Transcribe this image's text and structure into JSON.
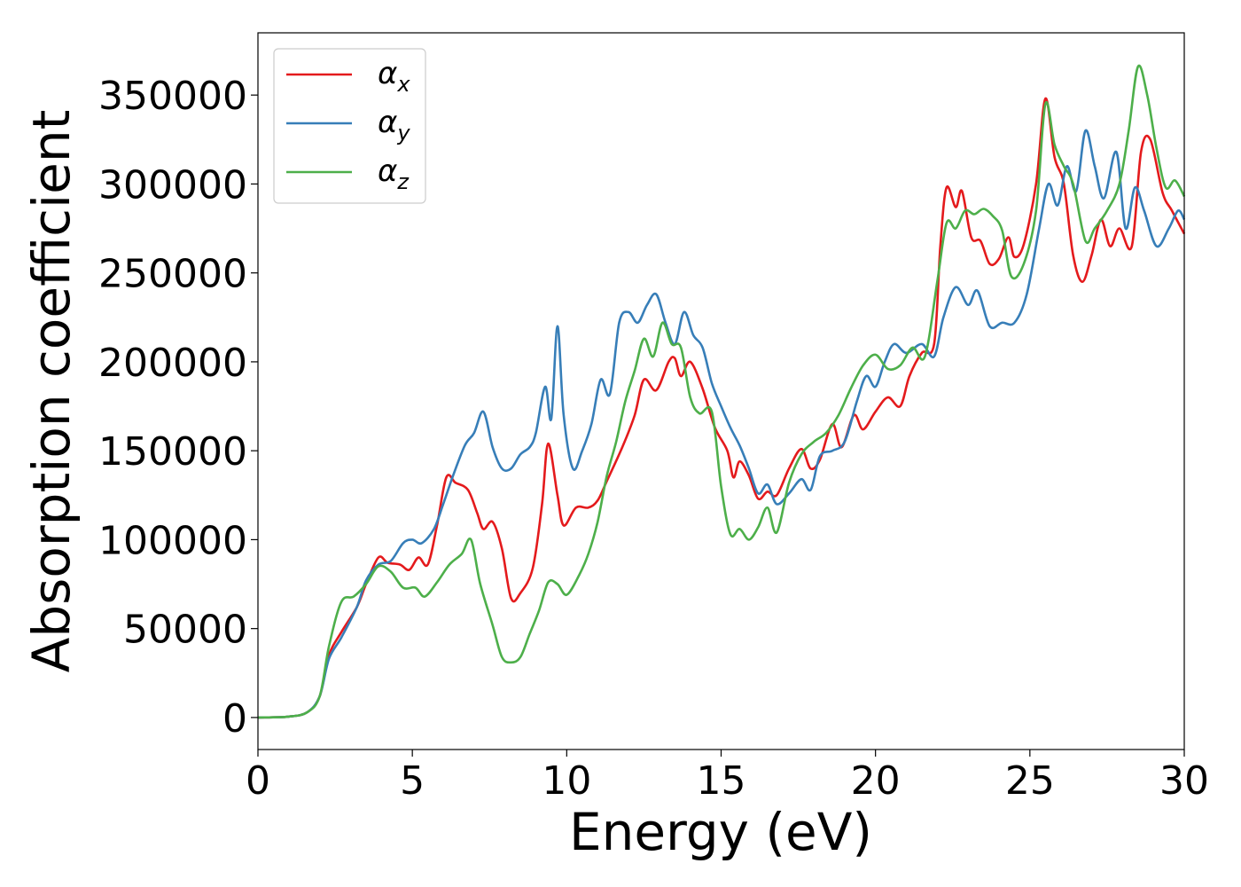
{
  "chart_data": {
    "type": "line",
    "title": "",
    "xlabel": "Energy (eV)",
    "ylabel": "Absorption coefficient",
    "xlim": [
      0,
      30
    ],
    "ylim": [
      -18000,
      385000
    ],
    "xticks": [
      0,
      5,
      10,
      15,
      20,
      25,
      30
    ],
    "xtick_labels": [
      "0",
      "5",
      "10",
      "15",
      "20",
      "25",
      "30"
    ],
    "yticks": [
      0,
      50000,
      100000,
      150000,
      200000,
      250000,
      300000,
      350000
    ],
    "ytick_labels": [
      "0",
      "50000",
      "100000",
      "150000",
      "200000",
      "250000",
      "300000",
      "350000"
    ],
    "grid": false,
    "legend_position": "top-left",
    "series": [
      {
        "name": "αx",
        "label_main": "α",
        "label_sub": "x",
        "color": "#e41a1c",
        "points": [
          [
            0,
            0
          ],
          [
            1,
            500
          ],
          [
            1.6,
            3000
          ],
          [
            2,
            12000
          ],
          [
            2.3,
            35000
          ],
          [
            2.7,
            48000
          ],
          [
            3.2,
            62000
          ],
          [
            3.5,
            75000
          ],
          [
            3.9,
            90000
          ],
          [
            4.2,
            87000
          ],
          [
            4.6,
            86000
          ],
          [
            4.9,
            83000
          ],
          [
            5.2,
            90000
          ],
          [
            5.5,
            86000
          ],
          [
            5.8,
            108000
          ],
          [
            6.1,
            135000
          ],
          [
            6.4,
            132000
          ],
          [
            6.8,
            128000
          ],
          [
            7.1,
            115000
          ],
          [
            7.3,
            106000
          ],
          [
            7.6,
            110000
          ],
          [
            7.9,
            95000
          ],
          [
            8.2,
            67000
          ],
          [
            8.5,
            70000
          ],
          [
            8.9,
            84000
          ],
          [
            9.2,
            120000
          ],
          [
            9.4,
            154000
          ],
          [
            9.7,
            125000
          ],
          [
            9.9,
            108000
          ],
          [
            10.3,
            118000
          ],
          [
            10.7,
            118000
          ],
          [
            11,
            122000
          ],
          [
            11.3,
            133000
          ],
          [
            11.8,
            152000
          ],
          [
            12.2,
            170000
          ],
          [
            12.5,
            190000
          ],
          [
            12.9,
            184000
          ],
          [
            13.3,
            200000
          ],
          [
            13.5,
            202000
          ],
          [
            13.7,
            192000
          ],
          [
            14,
            200000
          ],
          [
            14.4,
            185000
          ],
          [
            14.8,
            163000
          ],
          [
            15.2,
            150000
          ],
          [
            15.4,
            135000
          ],
          [
            15.6,
            144000
          ],
          [
            15.9,
            136000
          ],
          [
            16.2,
            123000
          ],
          [
            16.5,
            127000
          ],
          [
            16.8,
            125000
          ],
          [
            17.2,
            140000
          ],
          [
            17.6,
            151000
          ],
          [
            17.9,
            140000
          ],
          [
            18.2,
            145000
          ],
          [
            18.6,
            165000
          ],
          [
            18.9,
            152000
          ],
          [
            19.3,
            170000
          ],
          [
            19.6,
            162000
          ],
          [
            20,
            172000
          ],
          [
            20.4,
            180000
          ],
          [
            20.8,
            175000
          ],
          [
            21.1,
            192000
          ],
          [
            21.5,
            205000
          ],
          [
            21.9,
            210000
          ],
          [
            22.1,
            265000
          ],
          [
            22.3,
            298000
          ],
          [
            22.6,
            287000
          ],
          [
            22.8,
            296000
          ],
          [
            23.1,
            270000
          ],
          [
            23.4,
            268000
          ],
          [
            23.7,
            255000
          ],
          [
            24.0,
            258000
          ],
          [
            24.3,
            270000
          ],
          [
            24.5,
            259000
          ],
          [
            24.8,
            266000
          ],
          [
            25.2,
            300000
          ],
          [
            25.5,
            348000
          ],
          [
            25.8,
            315000
          ],
          [
            26.1,
            300000
          ],
          [
            26.4,
            260000
          ],
          [
            26.7,
            245000
          ],
          [
            27,
            260000
          ],
          [
            27.3,
            280000
          ],
          [
            27.6,
            265000
          ],
          [
            27.9,
            275000
          ],
          [
            28.3,
            265000
          ],
          [
            28.6,
            318000
          ],
          [
            28.9,
            325000
          ],
          [
            29.3,
            295000
          ],
          [
            29.6,
            285000
          ],
          [
            30,
            272000
          ]
        ]
      },
      {
        "name": "αy",
        "label_main": "α",
        "label_sub": "y",
        "color": "#377eb8",
        "points": [
          [
            0,
            0
          ],
          [
            1,
            500
          ],
          [
            1.6,
            3000
          ],
          [
            2,
            12000
          ],
          [
            2.3,
            33000
          ],
          [
            2.7,
            45000
          ],
          [
            3.2,
            62000
          ],
          [
            3.5,
            77000
          ],
          [
            3.9,
            86000
          ],
          [
            4.3,
            88000
          ],
          [
            4.7,
            98000
          ],
          [
            5.0,
            100000
          ],
          [
            5.3,
            98000
          ],
          [
            5.7,
            106000
          ],
          [
            6.0,
            120000
          ],
          [
            6.3,
            135000
          ],
          [
            6.7,
            153000
          ],
          [
            7.0,
            160000
          ],
          [
            7.3,
            172000
          ],
          [
            7.6,
            152000
          ],
          [
            7.9,
            140000
          ],
          [
            8.2,
            140000
          ],
          [
            8.5,
            148000
          ],
          [
            8.8,
            152000
          ],
          [
            9.0,
            160000
          ],
          [
            9.3,
            186000
          ],
          [
            9.5,
            168000
          ],
          [
            9.7,
            220000
          ],
          [
            9.9,
            170000
          ],
          [
            10.2,
            140000
          ],
          [
            10.5,
            150000
          ],
          [
            10.8,
            165000
          ],
          [
            11.1,
            190000
          ],
          [
            11.4,
            182000
          ],
          [
            11.7,
            222000
          ],
          [
            12.0,
            228000
          ],
          [
            12.3,
            222000
          ],
          [
            12.6,
            232000
          ],
          [
            12.9,
            238000
          ],
          [
            13.2,
            222000
          ],
          [
            13.5,
            210000
          ],
          [
            13.8,
            228000
          ],
          [
            14.1,
            215000
          ],
          [
            14.4,
            208000
          ],
          [
            14.7,
            188000
          ],
          [
            15.0,
            175000
          ],
          [
            15.3,
            163000
          ],
          [
            15.6,
            153000
          ],
          [
            15.9,
            140000
          ],
          [
            16.2,
            126000
          ],
          [
            16.5,
            131000
          ],
          [
            16.8,
            120000
          ],
          [
            17.2,
            126000
          ],
          [
            17.6,
            134000
          ],
          [
            17.9,
            128000
          ],
          [
            18.2,
            147000
          ],
          [
            18.6,
            150000
          ],
          [
            19.0,
            155000
          ],
          [
            19.4,
            178000
          ],
          [
            19.7,
            192000
          ],
          [
            20.0,
            186000
          ],
          [
            20.3,
            200000
          ],
          [
            20.6,
            210000
          ],
          [
            21.0,
            205000
          ],
          [
            21.5,
            210000
          ],
          [
            21.9,
            203000
          ],
          [
            22.2,
            225000
          ],
          [
            22.6,
            242000
          ],
          [
            23.0,
            232000
          ],
          [
            23.3,
            240000
          ],
          [
            23.7,
            220000
          ],
          [
            24.1,
            222000
          ],
          [
            24.5,
            222000
          ],
          [
            24.9,
            238000
          ],
          [
            25.3,
            275000
          ],
          [
            25.6,
            300000
          ],
          [
            25.9,
            288000
          ],
          [
            26.2,
            310000
          ],
          [
            26.5,
            296000
          ],
          [
            26.8,
            330000
          ],
          [
            27.1,
            310000
          ],
          [
            27.4,
            292000
          ],
          [
            27.8,
            318000
          ],
          [
            28.1,
            275000
          ],
          [
            28.4,
            298000
          ],
          [
            28.7,
            285000
          ],
          [
            29.1,
            265000
          ],
          [
            29.5,
            275000
          ],
          [
            29.8,
            285000
          ],
          [
            30,
            280000
          ]
        ]
      },
      {
        "name": "αz",
        "label_main": "α",
        "label_sub": "z",
        "color": "#4daf4a",
        "points": [
          [
            0,
            0
          ],
          [
            1,
            500
          ],
          [
            1.6,
            3000
          ],
          [
            2,
            12000
          ],
          [
            2.3,
            40000
          ],
          [
            2.7,
            65000
          ],
          [
            3.1,
            68000
          ],
          [
            3.5,
            75000
          ],
          [
            3.9,
            85000
          ],
          [
            4.3,
            82000
          ],
          [
            4.7,
            73000
          ],
          [
            5.1,
            73000
          ],
          [
            5.4,
            68000
          ],
          [
            5.8,
            76000
          ],
          [
            6.2,
            86000
          ],
          [
            6.6,
            92000
          ],
          [
            6.9,
            100000
          ],
          [
            7.2,
            75000
          ],
          [
            7.6,
            52000
          ],
          [
            7.9,
            34000
          ],
          [
            8.2,
            31000
          ],
          [
            8.5,
            34000
          ],
          [
            8.8,
            47000
          ],
          [
            9.1,
            60000
          ],
          [
            9.4,
            76000
          ],
          [
            9.7,
            75000
          ],
          [
            10.0,
            69000
          ],
          [
            10.4,
            80000
          ],
          [
            10.7,
            92000
          ],
          [
            11.0,
            110000
          ],
          [
            11.3,
            136000
          ],
          [
            11.6,
            155000
          ],
          [
            11.9,
            178000
          ],
          [
            12.2,
            195000
          ],
          [
            12.5,
            213000
          ],
          [
            12.8,
            203000
          ],
          [
            13.1,
            222000
          ],
          [
            13.4,
            210000
          ],
          [
            13.7,
            208000
          ],
          [
            14.0,
            180000
          ],
          [
            14.3,
            171000
          ],
          [
            14.7,
            172000
          ],
          [
            15.0,
            130000
          ],
          [
            15.3,
            103000
          ],
          [
            15.6,
            106000
          ],
          [
            15.9,
            100000
          ],
          [
            16.2,
            107000
          ],
          [
            16.5,
            118000
          ],
          [
            16.8,
            104000
          ],
          [
            17.2,
            132000
          ],
          [
            17.6,
            148000
          ],
          [
            18.0,
            155000
          ],
          [
            18.4,
            160000
          ],
          [
            18.8,
            170000
          ],
          [
            19.2,
            185000
          ],
          [
            19.6,
            198000
          ],
          [
            20.0,
            204000
          ],
          [
            20.4,
            196000
          ],
          [
            20.8,
            198000
          ],
          [
            21.2,
            208000
          ],
          [
            21.6,
            203000
          ],
          [
            22.0,
            245000
          ],
          [
            22.3,
            278000
          ],
          [
            22.6,
            275000
          ],
          [
            22.9,
            285000
          ],
          [
            23.2,
            283000
          ],
          [
            23.5,
            286000
          ],
          [
            23.8,
            282000
          ],
          [
            24.1,
            274000
          ],
          [
            24.4,
            248000
          ],
          [
            24.8,
            255000
          ],
          [
            25.2,
            285000
          ],
          [
            25.5,
            345000
          ],
          [
            25.8,
            322000
          ],
          [
            26.1,
            310000
          ],
          [
            26.4,
            300000
          ],
          [
            26.8,
            268000
          ],
          [
            27.1,
            275000
          ],
          [
            27.5,
            285000
          ],
          [
            27.9,
            300000
          ],
          [
            28.2,
            330000
          ],
          [
            28.5,
            366000
          ],
          [
            28.8,
            350000
          ],
          [
            29.1,
            320000
          ],
          [
            29.4,
            298000
          ],
          [
            29.7,
            302000
          ],
          [
            30,
            293000
          ]
        ]
      }
    ]
  }
}
